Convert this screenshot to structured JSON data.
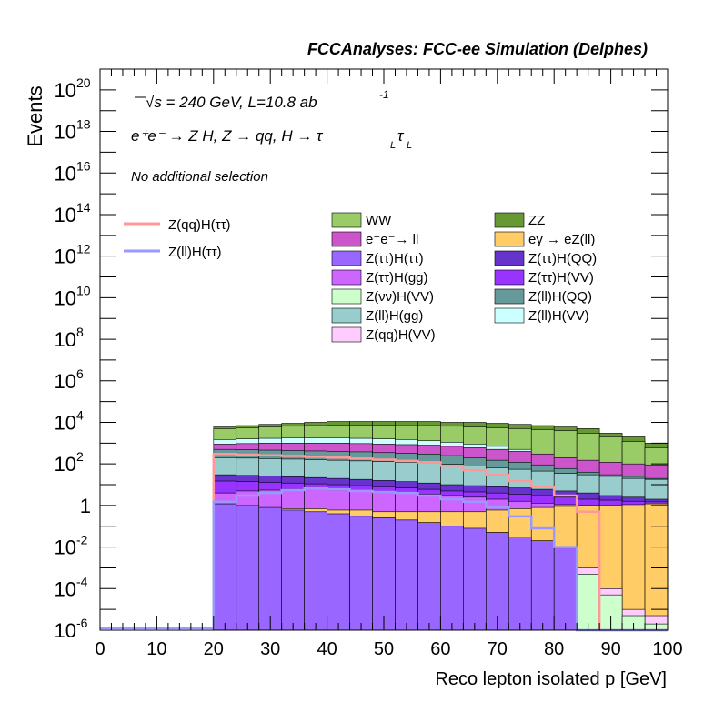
{
  "header": {
    "title": "FCCAnalyses: FCC-ee Simulation (Delphes)",
    "energy": "√s = 240 GeV, L=10.8 ab",
    "lumi_exp": "-1",
    "process": "e⁺e⁻ → Z H, Z → qq, H → τ",
    "process_sub1": "L",
    "process_tau2": "τ",
    "process_sub2": "L",
    "selection": "No additional selection"
  },
  "colors": {
    "WW": "#99cc66",
    "ZZ": "#669933",
    "eeToll": "#cc55cc",
    "egamma": "#ffcc66",
    "ZtautauHtautau": "#9966ff",
    "ZtautauHQQ": "#6633cc",
    "ZtautauHgg": "#cc66ff",
    "ZtautauHVV": "#9933ff",
    "ZnunuHVV": "#ccffcc",
    "ZllHQQ": "#669999",
    "ZllHgg": "#99cccc",
    "ZllHVV": "#ccffff",
    "ZqqHVV": "#ffccff",
    "sig_qq": "#ff9999",
    "sig_ll": "#9999ff"
  },
  "chart_data": {
    "type": "area",
    "title": "FCCAnalyses: FCC-ee Simulation (Delphes)",
    "xlabel": "Reco lepton isolated p [GeV]",
    "ylabel": "Events",
    "xlim": [
      0,
      100
    ],
    "ylim": [
      1e-06,
      1e+21
    ],
    "yscale": "log",
    "xticks": [
      0,
      10,
      20,
      30,
      40,
      50,
      60,
      70,
      80,
      90,
      100
    ],
    "yticks": [
      {
        "exp": -6,
        "label": "10",
        "sup": "-6"
      },
      {
        "exp": -4,
        "label": "10",
        "sup": "-4"
      },
      {
        "exp": -2,
        "label": "10",
        "sup": "-2"
      },
      {
        "exp": 0,
        "label": "1",
        "sup": ""
      },
      {
        "exp": 2,
        "label": "10",
        "sup": "2"
      },
      {
        "exp": 4,
        "label": "10",
        "sup": "4"
      },
      {
        "exp": 6,
        "label": "10",
        "sup": "6"
      },
      {
        "exp": 8,
        "label": "10",
        "sup": "8"
      },
      {
        "exp": 10,
        "label": "10",
        "sup": "10"
      },
      {
        "exp": 12,
        "label": "10",
        "sup": "12"
      },
      {
        "exp": 14,
        "label": "10",
        "sup": "14"
      },
      {
        "exp": 16,
        "label": "10",
        "sup": "16"
      },
      {
        "exp": 18,
        "label": "10",
        "sup": "18"
      },
      {
        "exp": 20,
        "label": "10",
        "sup": "20"
      }
    ],
    "bin_edges": [
      20,
      24,
      28,
      32,
      36,
      40,
      44,
      48,
      52,
      56,
      60,
      64,
      68,
      72,
      76,
      80,
      84,
      88,
      92,
      96,
      100
    ],
    "stack_tops": [
      {
        "name": "ZZ",
        "color_key": "ZZ",
        "values": [
          6000,
          7000,
          8000,
          9000,
          10000,
          11000,
          11000,
          11000,
          11000,
          11000,
          10000,
          10000,
          9000,
          8000,
          7000,
          6000,
          5000,
          3000,
          2000,
          1000
        ]
      },
      {
        "name": "WW",
        "color_key": "WW",
        "values": [
          5000,
          5500,
          6000,
          6500,
          7000,
          7500,
          7500,
          7500,
          7000,
          7000,
          6500,
          6000,
          5500,
          5000,
          4500,
          4000,
          3000,
          2000,
          1200,
          600
        ]
      },
      {
        "name": "Z(ll)H(VV)",
        "color_key": "ZllHVV",
        "values": [
          1500,
          1600,
          1700,
          1800,
          1800,
          1800,
          1700,
          1600,
          1500,
          1300,
          1100,
          900,
          700,
          500,
          300,
          150,
          100,
          80,
          70,
          60
        ]
      },
      {
        "name": "e⁺e⁻→ ll",
        "color_key": "eeToll",
        "values": [
          900,
          950,
          1000,
          1000,
          1000,
          1000,
          950,
          900,
          850,
          800,
          700,
          600,
          500,
          400,
          300,
          200,
          150,
          120,
          100,
          90
        ]
      },
      {
        "name": "Z(ll)H(QQ)",
        "color_key": "ZllHQQ",
        "values": [
          500,
          480,
          460,
          440,
          420,
          400,
          380,
          350,
          320,
          300,
          250,
          200,
          150,
          120,
          90,
          60,
          40,
          30,
          25,
          20
        ]
      },
      {
        "name": "Z(ll)H(gg)",
        "color_key": "ZllHgg",
        "values": [
          200,
          190,
          180,
          170,
          160,
          150,
          140,
          130,
          120,
          110,
          95,
          80,
          65,
          55,
          45,
          35,
          30,
          25,
          20,
          18
        ]
      },
      {
        "name": "Z(ττ)H(QQ)",
        "color_key": "ZtautauHQQ",
        "values": [
          30,
          28,
          26,
          24,
          22,
          20,
          18,
          16,
          14,
          12,
          10,
          9,
          8,
          7,
          6,
          5,
          4,
          3,
          2.5,
          2
        ]
      },
      {
        "name": "Z(ττ)H(VV)",
        "color_key": "ZtautauHVV",
        "values": [
          15,
          14,
          13,
          12,
          11,
          10,
          9,
          8,
          7,
          6,
          5,
          4.5,
          4,
          3.5,
          3,
          2.5,
          2,
          1.8,
          1.6,
          1.5
        ]
      },
      {
        "name": "Z(ττ)H(gg)",
        "color_key": "ZtautauHgg",
        "values": [
          4,
          5,
          5.5,
          6,
          6,
          5.5,
          5,
          4.5,
          4,
          3.5,
          3,
          2.5,
          2,
          1.6,
          1.3,
          1.1,
          1,
          0.9,
          0.8,
          0.7
        ]
      },
      {
        "name": "eγ → eZ(ll)",
        "color_key": "egamma",
        "values": [
          0.5,
          0.6,
          0.7,
          0.7,
          0.7,
          0.6,
          0.6,
          0.5,
          0.5,
          0.5,
          0.5,
          0.5,
          0.6,
          0.7,
          0.8,
          0.9,
          1,
          1,
          1.1,
          1.2
        ]
      },
      {
        "name": "Z(qq)H(VV)",
        "color_key": "ZqqHVV",
        "values": [
          0.3,
          0.35,
          0.4,
          0.4,
          0.4,
          0.35,
          0.3,
          0.25,
          0.2,
          0.15,
          0.1,
          0.07,
          0.05,
          0.03,
          0.02,
          0.01,
          0.001,
          0.0001,
          1e-05,
          5e-06
        ]
      },
      {
        "name": "Z(νν)H(VV)",
        "color_key": "ZnunuHVV",
        "values": [
          0.25,
          0.3,
          0.35,
          0.35,
          0.35,
          0.3,
          0.25,
          0.2,
          0.15,
          0.12,
          0.08,
          0.05,
          0.03,
          0.02,
          0.012,
          0.01,
          0.0005,
          5e-05,
          5e-06,
          2e-06
        ]
      },
      {
        "name": "Z(ττ)H(ττ)",
        "color_key": "ZtautauHtautau",
        "values": [
          1.2,
          1,
          0.8,
          0.6,
          0.5,
          0.4,
          0.3,
          0.25,
          0.2,
          0.15,
          0.1,
          0.08,
          0.05,
          0.03,
          0.02,
          0.01,
          1e-06,
          1e-06,
          1e-06,
          1e-06
        ]
      }
    ],
    "lines": [
      {
        "name": "Z(qq)H(ττ)",
        "color_key": "sig_qq",
        "values": [
          300,
          280,
          260,
          240,
          220,
          200,
          180,
          160,
          140,
          120,
          80,
          50,
          30,
          15,
          8,
          3,
          0.5,
          1e-06,
          1e-06,
          1e-06
        ]
      },
      {
        "name": "Z(ll)H(ττ)",
        "color_key": "sig_ll",
        "values": [
          1.5,
          3,
          4,
          5.5,
          6.5,
          6,
          5,
          4.5,
          4,
          3,
          2,
          1.5,
          0.8,
          0.3,
          0.08,
          0.01,
          1e-06,
          1e-06,
          1e-06,
          1e-06
        ]
      }
    ],
    "legend_left": [
      {
        "name": "Z(qq)H(ττ)",
        "color_key": "sig_qq",
        "style": "line"
      },
      {
        "name": "Z(ll)H(ττ)",
        "color_key": "sig_ll",
        "style": "line"
      }
    ],
    "legend_right": [
      {
        "name": "WW",
        "color_key": "WW"
      },
      {
        "name": "ZZ",
        "color_key": "ZZ"
      },
      {
        "name": "e⁺e⁻→ ll",
        "color_key": "eeToll"
      },
      {
        "name": "eγ → eZ(ll)",
        "color_key": "egamma"
      },
      {
        "name": "Z(ττ)H(ττ)",
        "color_key": "ZtautauHtautau"
      },
      {
        "name": "Z(ττ)H(QQ)",
        "color_key": "ZtautauHQQ"
      },
      {
        "name": "Z(ττ)H(gg)",
        "color_key": "ZtautauHgg"
      },
      {
        "name": "Z(ττ)H(VV)",
        "color_key": "ZtautauHVV"
      },
      {
        "name": "Z(νν)H(VV)",
        "color_key": "ZnunuHVV"
      },
      {
        "name": "Z(ll)H(QQ)",
        "color_key": "ZllHQQ"
      },
      {
        "name": "Z(ll)H(gg)",
        "color_key": "ZllHgg"
      },
      {
        "name": "Z(ll)H(VV)",
        "color_key": "ZllHVV"
      },
      {
        "name": "Z(qq)H(VV)",
        "color_key": "ZqqHVV"
      }
    ]
  }
}
